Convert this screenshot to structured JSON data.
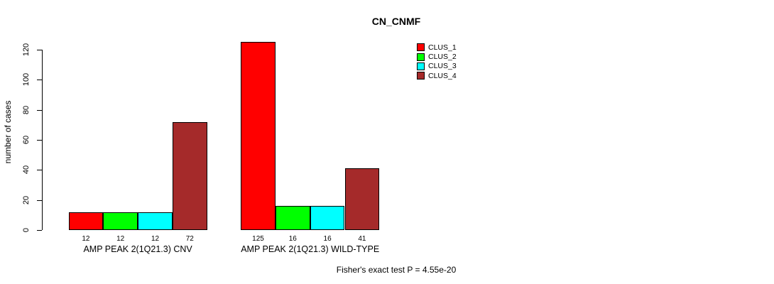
{
  "chart": {
    "title": "CN_CNMF",
    "ylabel": "number of cases",
    "annotation": "Fisher's exact test P = 4.55e-20"
  },
  "legend": {
    "items": [
      {
        "label": "CLUS_1",
        "color": "#FF0000"
      },
      {
        "label": "CLUS_2",
        "color": "#00FF00"
      },
      {
        "label": "CLUS_3",
        "color": "#00FFFF"
      },
      {
        "label": "CLUS_4",
        "color": "#A52A2A"
      }
    ]
  },
  "chart_data": {
    "type": "bar",
    "title": "CN_CNMF",
    "xlabel": "",
    "ylabel": "number of cases",
    "ylim": [
      0,
      120
    ],
    "yticks": [
      0,
      20,
      40,
      60,
      80,
      100,
      120
    ],
    "grid": false,
    "legend_position": "top-right",
    "categories": [
      "AMP PEAK 2(1Q21.3) CNV",
      "AMP PEAK 2(1Q21.3) WILD-TYPE"
    ],
    "series": [
      {
        "name": "CLUS_1",
        "color": "#FF0000",
        "values": [
          12,
          125
        ]
      },
      {
        "name": "CLUS_2",
        "color": "#00FF00",
        "values": [
          12,
          16
        ]
      },
      {
        "name": "CLUS_3",
        "color": "#00FFFF",
        "values": [
          12,
          16
        ]
      },
      {
        "name": "CLUS_4",
        "color": "#A52A2A",
        "values": [
          72,
          41
        ]
      }
    ],
    "bar_value_labels": [
      [
        12,
        12,
        12,
        72
      ],
      [
        125,
        16,
        16,
        41
      ]
    ],
    "annotation": "Fisher's exact test P = 4.55e-20"
  }
}
